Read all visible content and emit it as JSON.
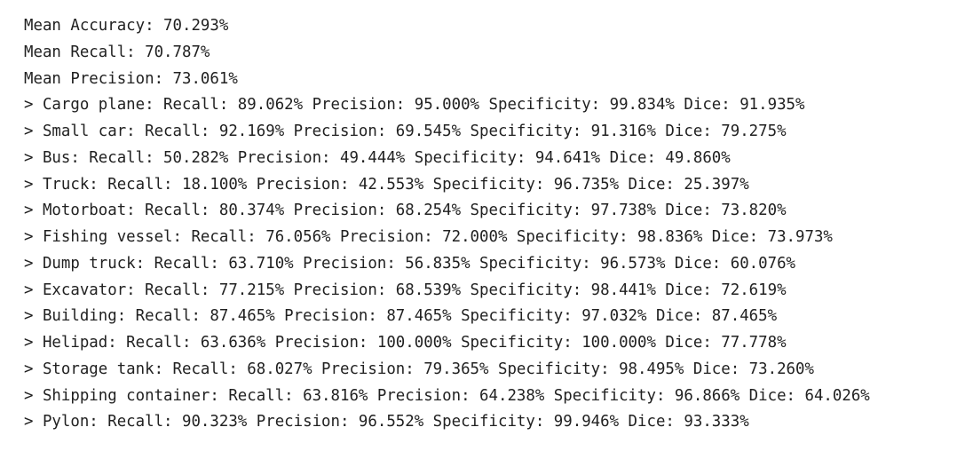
{
  "output": {
    "lines": [
      "Mean Accuracy: 70.293%",
      "Mean Recall: 70.787%",
      "Mean Precision: 73.061%",
      "> Cargo plane: Recall: 89.062% Precision: 95.000% Specificity: 99.834% Dice: 91.935%",
      "> Small car: Recall: 92.169% Precision: 69.545% Specificity: 91.316% Dice: 79.275%",
      "> Bus: Recall: 50.282% Precision: 49.444% Specificity: 94.641% Dice: 49.860%",
      "> Truck: Recall: 18.100% Precision: 42.553% Specificity: 96.735% Dice: 25.397%",
      "> Motorboat: Recall: 80.374% Precision: 68.254% Specificity: 97.738% Dice: 73.820%",
      "> Fishing vessel: Recall: 76.056% Precision: 72.000% Specificity: 98.836% Dice: 73.973%",
      "> Dump truck: Recall: 63.710% Precision: 56.835% Specificity: 96.573% Dice: 60.076%",
      "> Excavator: Recall: 77.215% Precision: 68.539% Specificity: 98.441% Dice: 72.619%",
      "> Building: Recall: 87.465% Precision: 87.465% Specificity: 97.032% Dice: 87.465%",
      "> Helipad: Recall: 63.636% Precision: 100.000% Specificity: 100.000% Dice: 77.778%",
      "> Storage tank: Recall: 68.027% Precision: 79.365% Specificity: 98.495% Dice: 73.260%",
      "> Shipping container: Recall: 63.816% Precision: 64.238% Specificity: 96.866% Dice: 64.026%",
      "> Pylon: Recall: 90.323% Precision: 96.552% Specificity: 99.946% Dice: 93.333%"
    ]
  }
}
